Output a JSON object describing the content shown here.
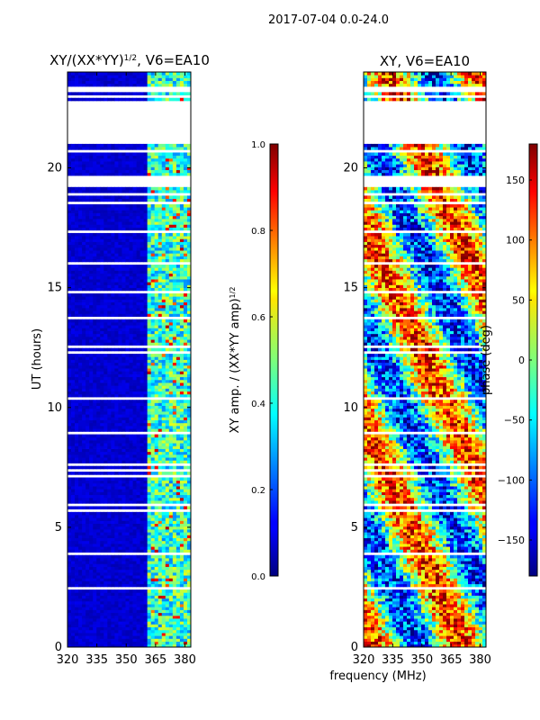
{
  "figure": {
    "suptitle": "2017-07-04 0.0-24.0",
    "shared_xlabel": "frequency (MHz)"
  },
  "chart_data": [
    {
      "type": "heatmap",
      "title_main": "XY/(XX*YY)",
      "title_exp": "1/2",
      "title_suffix": ", V6=EA10",
      "ylabel": "UT (hours)",
      "x_ticks": [
        320,
        335,
        350,
        365,
        380
      ],
      "y_ticks": [
        0,
        5,
        10,
        15,
        20
      ],
      "xlim": [
        320,
        383
      ],
      "ylim": [
        0,
        24
      ],
      "empty_band_hours": [
        21.1,
        22.7
      ],
      "bright_band_freq_range_mhz": [
        360,
        382
      ],
      "colorbar": {
        "label_main": "XY amp. / (XX*YY amp)",
        "label_exp": "1/2",
        "range": [
          0.0,
          1.0
        ],
        "ticks": [
          "0.0",
          "0.2",
          "0.4",
          "0.6",
          "0.8",
          "1.0"
        ],
        "colormap": "jet"
      }
    },
    {
      "type": "heatmap",
      "title": "XY, V6=EA10",
      "x_ticks": [
        320,
        335,
        350,
        365,
        380
      ],
      "y_ticks": [
        0,
        5,
        10,
        15,
        20
      ],
      "xlim": [
        320,
        383
      ],
      "ylim": [
        0,
        24
      ],
      "empty_band_hours": [
        21.1,
        22.7
      ],
      "colorbar": {
        "label": "phase (deg)",
        "range": [
          -180,
          180
        ],
        "ticks": [
          "−150",
          "−100",
          "−50",
          "0",
          "50",
          "100",
          "150"
        ],
        "colormap": "jet"
      }
    }
  ]
}
